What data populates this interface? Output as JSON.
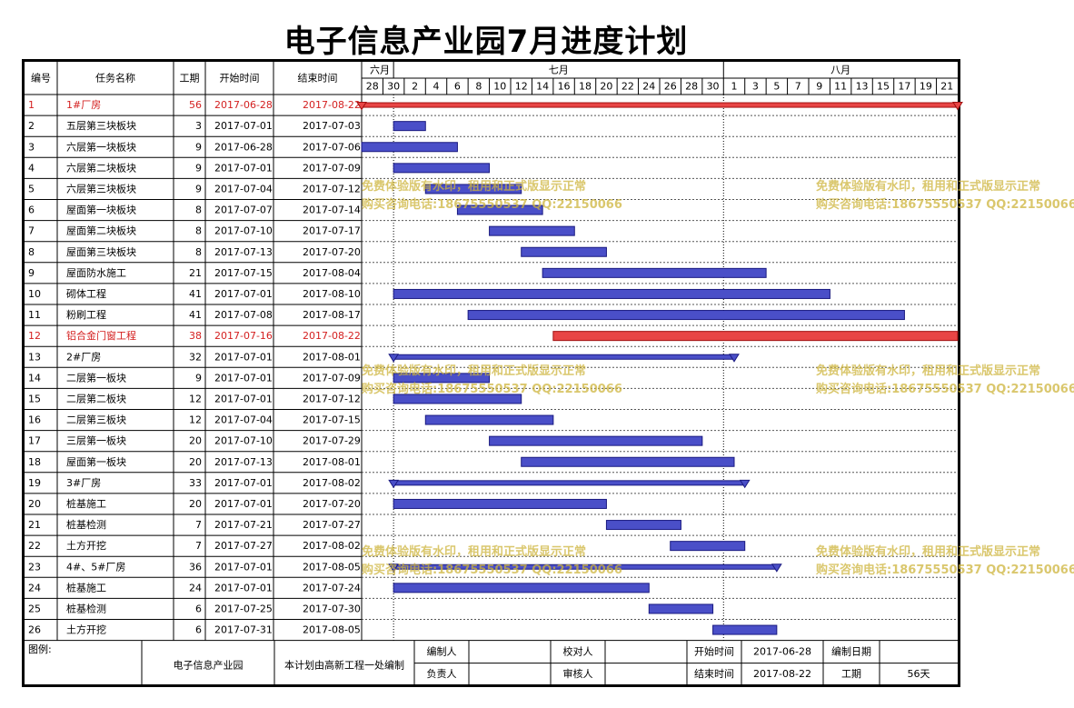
{
  "title": "电子信息产业园7月进度计划",
  "columns": {
    "id": "编号",
    "name": "任务名称",
    "duration": "工期",
    "start": "开始时间",
    "end": "结束时间"
  },
  "timeline": {
    "months": [
      "六月",
      "七月",
      "八月"
    ],
    "day_labels": [
      "28",
      "30",
      "2",
      "4",
      "6",
      "8",
      "10",
      "12",
      "14",
      "16",
      "18",
      "20",
      "22",
      "24",
      "26",
      "28",
      "30",
      "1",
      "3",
      "5",
      "7",
      "9",
      "11",
      "13",
      "15",
      "17",
      "19",
      "21"
    ],
    "start_date": "2017-06-28",
    "end_date": "2017-08-22"
  },
  "chart_data": {
    "type": "gantt",
    "title": "电子信息产业园7月进度计划",
    "tasks": [
      {
        "id": "1",
        "name": "1#厂房",
        "duration": "56",
        "start": "2017-06-28",
        "end": "2017-08-22",
        "kind": "critical-summary"
      },
      {
        "id": "2",
        "name": "五层第三块板块",
        "duration": "3",
        "start": "2017-07-01",
        "end": "2017-07-03",
        "kind": "task"
      },
      {
        "id": "3",
        "name": "六层第一块板块",
        "duration": "9",
        "start": "2017-06-28",
        "end": "2017-07-06",
        "kind": "task"
      },
      {
        "id": "4",
        "name": "六层第二块板块",
        "duration": "9",
        "start": "2017-07-01",
        "end": "2017-07-09",
        "kind": "task"
      },
      {
        "id": "5",
        "name": "六层第三块板块",
        "duration": "9",
        "start": "2017-07-04",
        "end": "2017-07-12",
        "kind": "task"
      },
      {
        "id": "6",
        "name": "屋面第一块板块",
        "duration": "8",
        "start": "2017-07-07",
        "end": "2017-07-14",
        "kind": "task"
      },
      {
        "id": "7",
        "name": "屋面第二块板块",
        "duration": "8",
        "start": "2017-07-10",
        "end": "2017-07-17",
        "kind": "task"
      },
      {
        "id": "8",
        "name": "屋面第三块板块",
        "duration": "8",
        "start": "2017-07-13",
        "end": "2017-07-20",
        "kind": "task"
      },
      {
        "id": "9",
        "name": "屋面防水施工",
        "duration": "21",
        "start": "2017-07-15",
        "end": "2017-08-04",
        "kind": "task"
      },
      {
        "id": "10",
        "name": "砌体工程",
        "duration": "41",
        "start": "2017-07-01",
        "end": "2017-08-10",
        "kind": "task"
      },
      {
        "id": "11",
        "name": "粉刷工程",
        "duration": "41",
        "start": "2017-07-08",
        "end": "2017-08-17",
        "kind": "task"
      },
      {
        "id": "12",
        "name": "铝合金门窗工程",
        "duration": "38",
        "start": "2017-07-16",
        "end": "2017-08-22",
        "kind": "critical-task"
      },
      {
        "id": "13",
        "name": "2#厂房",
        "duration": "32",
        "start": "2017-07-01",
        "end": "2017-08-01",
        "kind": "summary"
      },
      {
        "id": "14",
        "name": "二层第一板块",
        "duration": "9",
        "start": "2017-07-01",
        "end": "2017-07-09",
        "kind": "task"
      },
      {
        "id": "15",
        "name": "二层第二板块",
        "duration": "12",
        "start": "2017-07-01",
        "end": "2017-07-12",
        "kind": "task"
      },
      {
        "id": "16",
        "name": "二层第三板块",
        "duration": "12",
        "start": "2017-07-04",
        "end": "2017-07-15",
        "kind": "task"
      },
      {
        "id": "17",
        "name": "三层第一板块",
        "duration": "20",
        "start": "2017-07-10",
        "end": "2017-07-29",
        "kind": "task"
      },
      {
        "id": "18",
        "name": "屋面第一板块",
        "duration": "20",
        "start": "2017-07-13",
        "end": "2017-08-01",
        "kind": "task"
      },
      {
        "id": "19",
        "name": "3#厂房",
        "duration": "33",
        "start": "2017-07-01",
        "end": "2017-08-02",
        "kind": "summary"
      },
      {
        "id": "20",
        "name": "桩基施工",
        "duration": "20",
        "start": "2017-07-01",
        "end": "2017-07-20",
        "kind": "task"
      },
      {
        "id": "21",
        "name": "桩基检测",
        "duration": "7",
        "start": "2017-07-21",
        "end": "2017-07-27",
        "kind": "task"
      },
      {
        "id": "22",
        "name": "土方开挖",
        "duration": "7",
        "start": "2017-07-27",
        "end": "2017-08-02",
        "kind": "task"
      },
      {
        "id": "23",
        "name": "4#、5#厂房",
        "duration": "36",
        "start": "2017-07-01",
        "end": "2017-08-05",
        "kind": "summary"
      },
      {
        "id": "24",
        "name": "桩基施工",
        "duration": "24",
        "start": "2017-07-01",
        "end": "2017-07-24",
        "kind": "task"
      },
      {
        "id": "25",
        "name": "桩基检测",
        "duration": "6",
        "start": "2017-07-25",
        "end": "2017-07-30",
        "kind": "task"
      },
      {
        "id": "26",
        "name": "土方开挖",
        "duration": "6",
        "start": "2017-07-31",
        "end": "2017-08-05",
        "kind": "task"
      }
    ]
  },
  "footer": {
    "legend_label": "图例:",
    "company": "电子信息产业园",
    "note": "本计划由高新工程一处编制",
    "prepared_by_label": "编制人",
    "responsible_label": "负责人",
    "checker_label": "校对人",
    "reviewer_label": "审核人",
    "start_label": "开始时间",
    "start_value": "2017-06-28",
    "end_label": "结束时间",
    "end_value": "2017-08-22",
    "compile_date_label": "编制日期",
    "duration_label": "工期",
    "duration_value": "56天"
  },
  "watermark": {
    "line1": "免费体验版有水印，租用和正式版显示正常",
    "line2": "购买咨询电话:18675550537 QQ:22150066"
  },
  "colors": {
    "task_bar": "#4a4fc8",
    "task_bar_edge": "#1a1a80",
    "critical": "#e84545",
    "critical_text": "#d42020",
    "summary": "#4a4fc8"
  }
}
